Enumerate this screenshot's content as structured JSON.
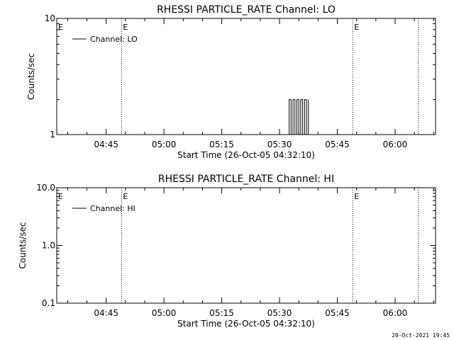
{
  "chart_data": [
    {
      "type": "line",
      "title": "RHESSI PARTICLE_RATE Channel: LO",
      "xlabel": "Start Time (26-Oct-05 04:32:10)",
      "ylabel": "Counts/sec",
      "yscale": "log",
      "ylim": [
        1,
        10
      ],
      "y_ticks": [
        "1",
        "10"
      ],
      "xlim": [
        "04:32:10",
        "06:10:30"
      ],
      "x_ticks": [
        "04:45",
        "05:00",
        "05:15",
        "05:30",
        "05:45",
        "06:00"
      ],
      "legend": {
        "placement": "top-left",
        "entries": [
          "Channel: LO"
        ]
      },
      "vlines": [
        {
          "x": "04:49:00",
          "style": "dotted",
          "label": "E"
        },
        {
          "x": "05:49:00",
          "style": "dotted",
          "label": "E"
        },
        {
          "x": "06:06:00",
          "style": "dotted",
          "label": ""
        }
      ],
      "series": [
        {
          "name": "Channel: LO",
          "x": [
            "05:32:00",
            "05:32:30",
            "05:33:00",
            "05:33:30",
            "05:34:00",
            "05:34:30",
            "05:35:00",
            "05:35:30",
            "05:36:00",
            "05:36:30",
            "05:37:00",
            "05:37:30"
          ],
          "y": [
            1,
            2,
            1,
            2,
            1,
            2,
            1,
            2,
            1,
            2,
            1,
            2
          ]
        }
      ]
    },
    {
      "type": "line",
      "title": "RHESSI PARTICLE_RATE Channel: HI",
      "xlabel": "Start Time (26-Oct-05 04:32:10)",
      "ylabel": "Counts/sec",
      "yscale": "log",
      "ylim": [
        0.1,
        10
      ],
      "y_ticks": [
        "0.1",
        "1.0",
        "10.0"
      ],
      "xlim": [
        "04:32:10",
        "06:10:30"
      ],
      "x_ticks": [
        "04:45",
        "05:00",
        "05:15",
        "05:30",
        "05:45",
        "06:00"
      ],
      "legend": {
        "placement": "top-left",
        "entries": [
          "Channel: HI"
        ]
      },
      "vlines": [
        {
          "x": "04:49:00",
          "style": "dotted",
          "label": "E"
        },
        {
          "x": "05:49:00",
          "style": "dotted",
          "label": "E"
        },
        {
          "x": "06:06:00",
          "style": "dotted",
          "label": ""
        }
      ],
      "series": [
        {
          "name": "Channel: HI",
          "x": [],
          "y": []
        }
      ]
    }
  ],
  "footer": {
    "timestamp": "20-Oct-2021 19:45"
  }
}
